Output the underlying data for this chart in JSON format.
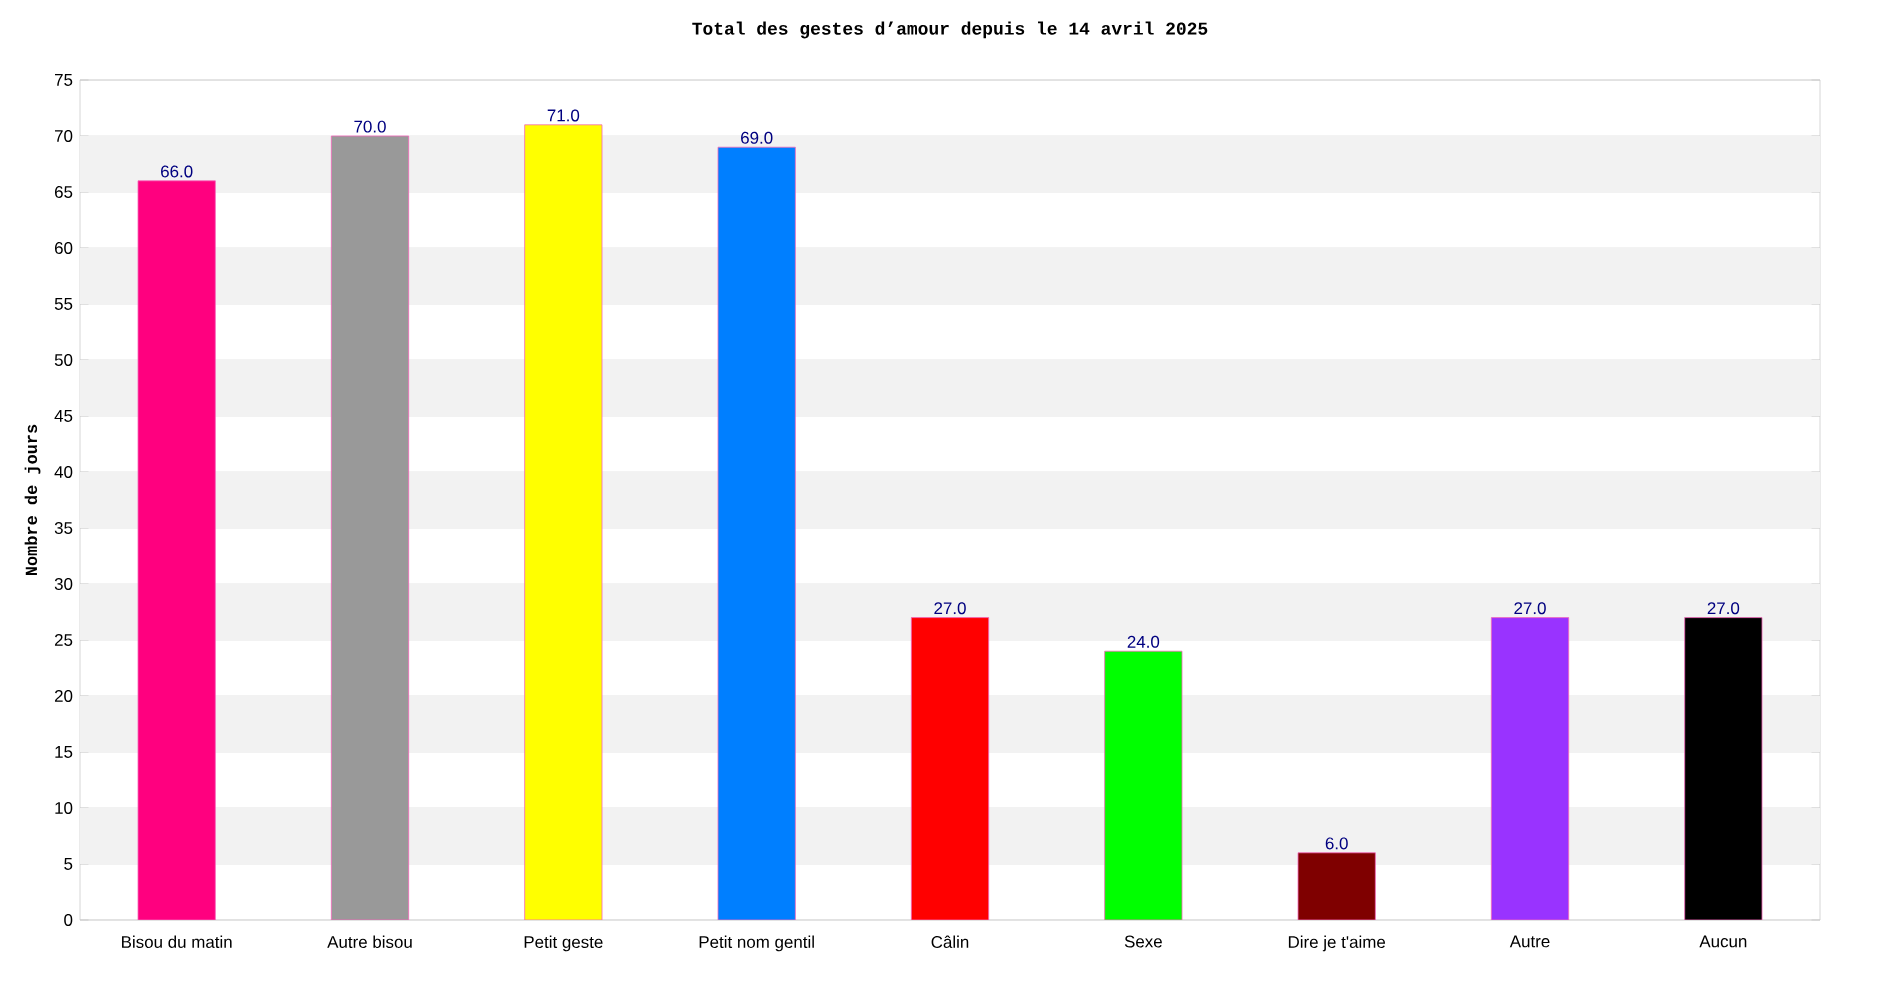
{
  "chart_data": {
    "type": "bar",
    "title": "Total des gestes d’amour depuis le 14 avril 2025",
    "ylabel": "Nombre de jours",
    "categories": [
      "Bisou du matin",
      "Autre bisou",
      "Petit geste",
      "Petit nom gentil",
      "Câlin",
      "Sexe",
      "Dire je t'aime",
      "Autre",
      "Aucun"
    ],
    "values": [
      66,
      70,
      71,
      69,
      27,
      24,
      6,
      27,
      27
    ],
    "colors": [
      "#ff007f",
      "#999999",
      "#ffff00",
      "#007fff",
      "#ff0000",
      "#00ff00",
      "#7f0000",
      "#9933ff",
      "#000000"
    ],
    "value_labels": [
      "66.0",
      "70.0",
      "71.0",
      "69.0",
      "27.0",
      "24.0",
      "6.0",
      "27.0",
      "27.0"
    ],
    "ylim": [
      0,
      75
    ],
    "yticks": [
      0,
      5,
      10,
      15,
      20,
      25,
      30,
      35,
      40,
      45,
      50,
      55,
      60,
      65,
      70,
      75
    ],
    "grid": "y"
  }
}
